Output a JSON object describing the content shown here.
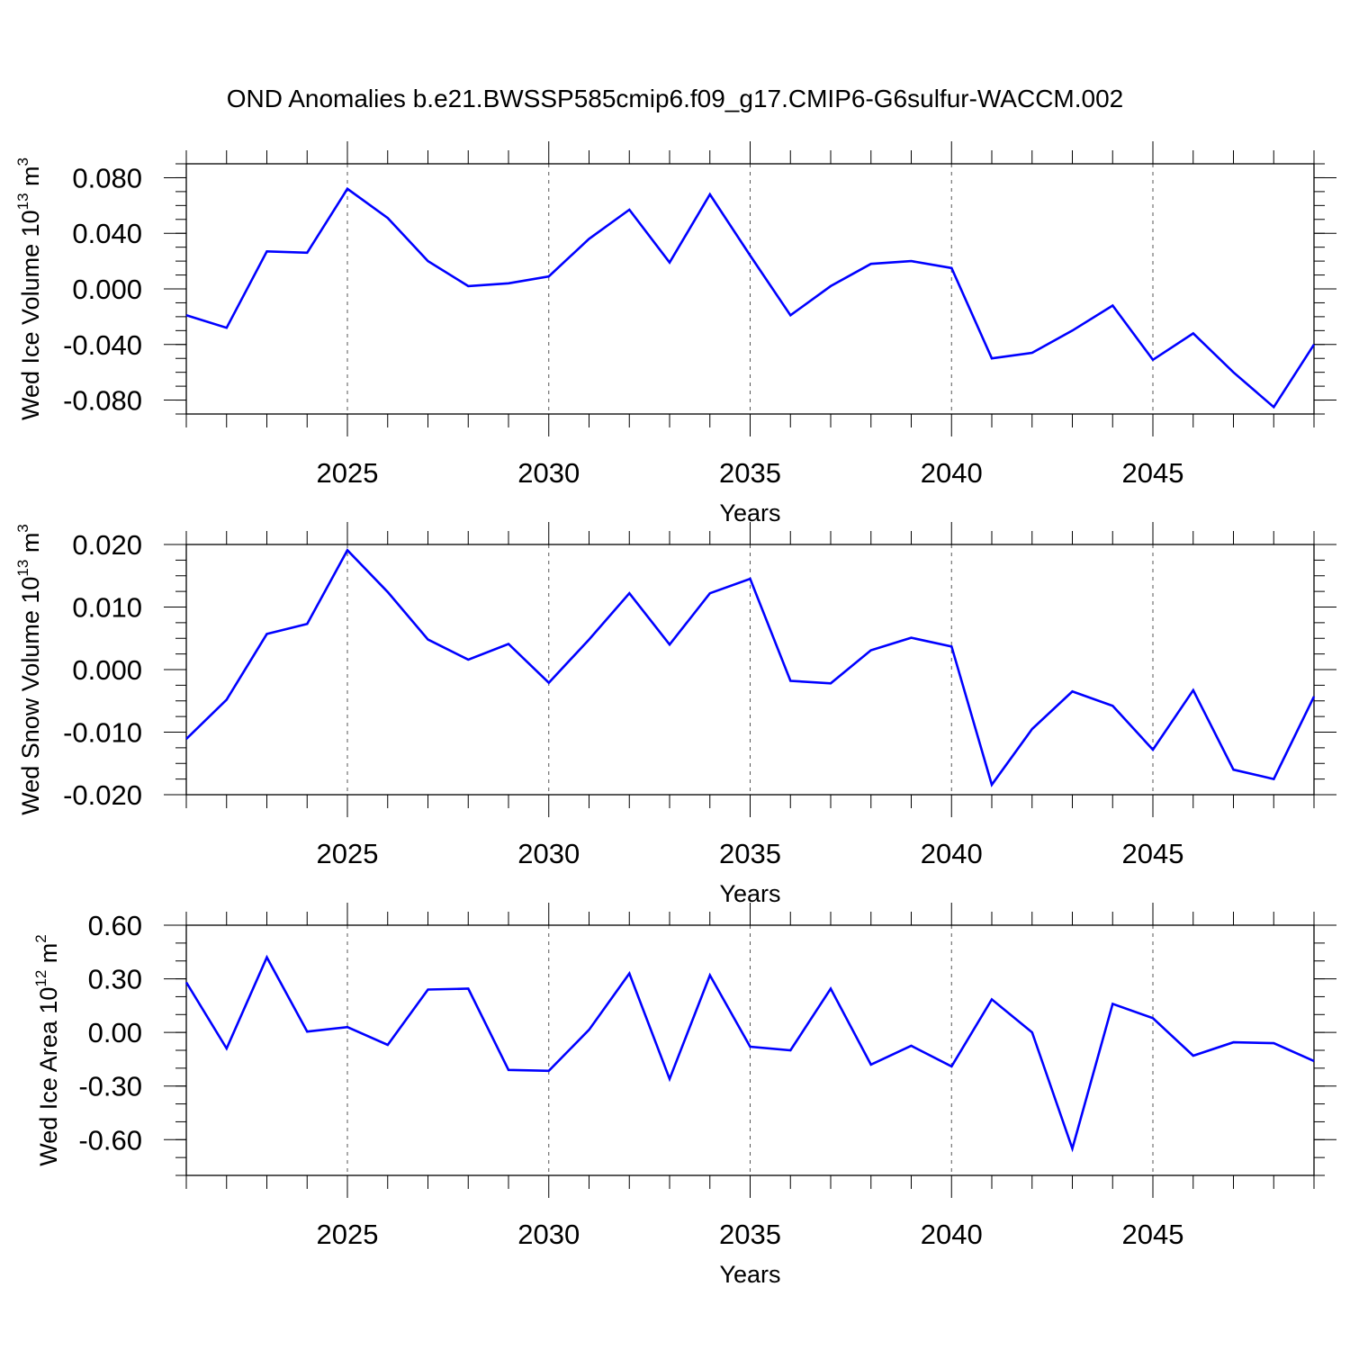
{
  "title": "OND Anomalies b.e21.BWSSP585cmip6.f09_g17.CMIP6-G6sulfur-WACCM.002",
  "line_color": "#0000ff",
  "chart_data": [
    {
      "type": "line",
      "ylabel": "Wed Ice Volume",
      "unit_base": "10",
      "unit_exp": "13",
      "unit_sym": "m",
      "unit_sym_exp": "3",
      "xlabel": "Years",
      "xlim": [
        2021,
        2049
      ],
      "ylim": [
        -0.09,
        0.09
      ],
      "yticks": [
        -0.08,
        -0.04,
        0.0,
        0.04,
        0.08
      ],
      "ytick_labels": [
        "-0.080",
        "-0.040",
        "0.000",
        "0.040",
        "0.080"
      ],
      "yminor_step": 0.01,
      "xticks": [
        2025,
        2030,
        2035,
        2040,
        2045
      ],
      "xtick_labels": [
        "2025",
        "2030",
        "2035",
        "2040",
        "2045"
      ],
      "grid": "vertical dashed at major x ticks",
      "x": [
        2021,
        2022,
        2023,
        2024,
        2025,
        2026,
        2027,
        2028,
        2029,
        2030,
        2031,
        2032,
        2033,
        2034,
        2035,
        2036,
        2037,
        2038,
        2039,
        2040,
        2041,
        2042,
        2043,
        2044,
        2045,
        2046,
        2047,
        2048,
        2049
      ],
      "values": [
        -0.019,
        -0.028,
        0.027,
        0.026,
        0.072,
        0.051,
        0.02,
        0.002,
        0.004,
        0.009,
        0.036,
        0.057,
        0.019,
        0.068,
        0.024,
        -0.019,
        0.002,
        0.018,
        0.02,
        0.015,
        -0.05,
        -0.046,
        -0.03,
        -0.012,
        -0.051,
        -0.032,
        -0.06,
        -0.085,
        -0.04
      ]
    },
    {
      "type": "line",
      "ylabel": "Wed Snow Volume",
      "unit_base": "10",
      "unit_exp": "13",
      "unit_sym": "m",
      "unit_sym_exp": "3",
      "xlabel": "Years",
      "xlim": [
        2021,
        2049
      ],
      "ylim": [
        -0.02,
        0.02
      ],
      "yticks": [
        -0.02,
        -0.01,
        0.0,
        0.01,
        0.02
      ],
      "ytick_labels": [
        "-0.020",
        "-0.010",
        "0.000",
        "0.010",
        "0.020"
      ],
      "yminor_step": 0.0025,
      "xticks": [
        2025,
        2030,
        2035,
        2040,
        2045
      ],
      "xtick_labels": [
        "2025",
        "2030",
        "2035",
        "2040",
        "2045"
      ],
      "grid": "vertical dashed at major x ticks",
      "x": [
        2021,
        2022,
        2023,
        2024,
        2025,
        2026,
        2027,
        2028,
        2029,
        2030,
        2031,
        2032,
        2033,
        2034,
        2035,
        2036,
        2037,
        2038,
        2039,
        2040,
        2041,
        2042,
        2043,
        2044,
        2045,
        2046,
        2047,
        2048,
        2049
      ],
      "values": [
        -0.0111,
        -0.0048,
        0.0057,
        0.0073,
        0.0191,
        0.0124,
        0.0048,
        0.0016,
        0.0041,
        -0.0021,
        0.0048,
        0.0122,
        0.004,
        0.0122,
        0.0145,
        -0.0018,
        -0.0022,
        0.0031,
        0.0051,
        0.0037,
        -0.0184,
        -0.0095,
        -0.0035,
        -0.0058,
        -0.0128,
        -0.0033,
        -0.016,
        -0.0175,
        -0.0043
      ]
    },
    {
      "type": "line",
      "ylabel": "Wed Ice Area",
      "unit_base": "10",
      "unit_exp": "12",
      "unit_sym": "m",
      "unit_sym_exp": "2",
      "xlabel": "Years",
      "xlim": [
        2021,
        2049
      ],
      "ylim": [
        -0.8,
        0.6
      ],
      "yticks": [
        -0.6,
        -0.3,
        0.0,
        0.3,
        0.6
      ],
      "ytick_labels": [
        "-0.60",
        "-0.30",
        "0.00",
        "0.30",
        "0.60"
      ],
      "yminor_step": 0.1,
      "xticks": [
        2025,
        2030,
        2035,
        2040,
        2045
      ],
      "xtick_labels": [
        "2025",
        "2030",
        "2035",
        "2040",
        "2045"
      ],
      "grid": "vertical dashed at major x ticks",
      "x": [
        2021,
        2022,
        2023,
        2024,
        2025,
        2026,
        2027,
        2028,
        2029,
        2030,
        2031,
        2032,
        2033,
        2034,
        2035,
        2036,
        2037,
        2038,
        2039,
        2040,
        2041,
        2042,
        2043,
        2044,
        2045,
        2046,
        2047,
        2048,
        2049
      ],
      "values": [
        0.28,
        -0.09,
        0.42,
        0.005,
        0.03,
        -0.07,
        0.24,
        0.245,
        -0.21,
        -0.215,
        0.015,
        0.33,
        -0.26,
        0.32,
        -0.08,
        -0.1,
        0.245,
        -0.18,
        -0.075,
        -0.19,
        0.185,
        0.0,
        -0.65,
        0.16,
        0.08,
        -0.13,
        -0.055,
        -0.06,
        -0.16
      ]
    }
  ]
}
